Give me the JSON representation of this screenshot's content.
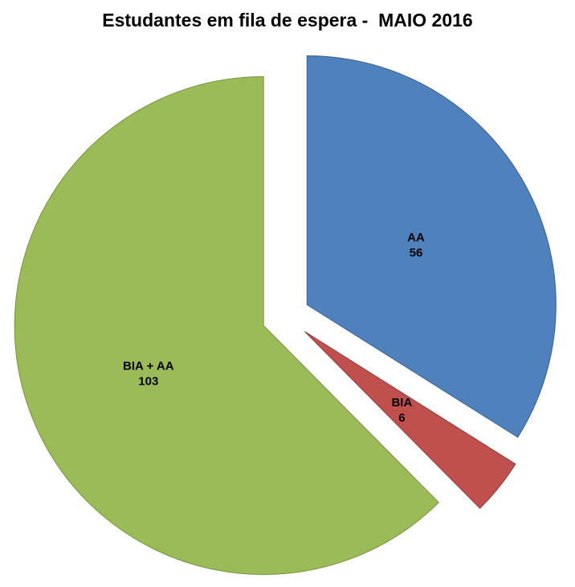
{
  "chart_data": {
    "type": "pie",
    "title": "Estudantes em fila de espera -  MAIO 2016",
    "slices": [
      {
        "label": "AA",
        "value": 56,
        "color": "#4F81BD",
        "border": "#3A6091"
      },
      {
        "label": "BIA",
        "value": 6,
        "color": "#C0504D",
        "border": "#953735"
      },
      {
        "label": "BIA + AA",
        "value": 103,
        "color": "#9BBB59",
        "border": "#77933C"
      }
    ],
    "layout": {
      "start_angle_deg": 0,
      "direction": "clockwise",
      "explode_fraction": 0.097,
      "label_radius_fraction": 0.5,
      "legend": false,
      "background": "#FFFFFF",
      "label_color": "#000000",
      "title_color": "#000000"
    }
  }
}
